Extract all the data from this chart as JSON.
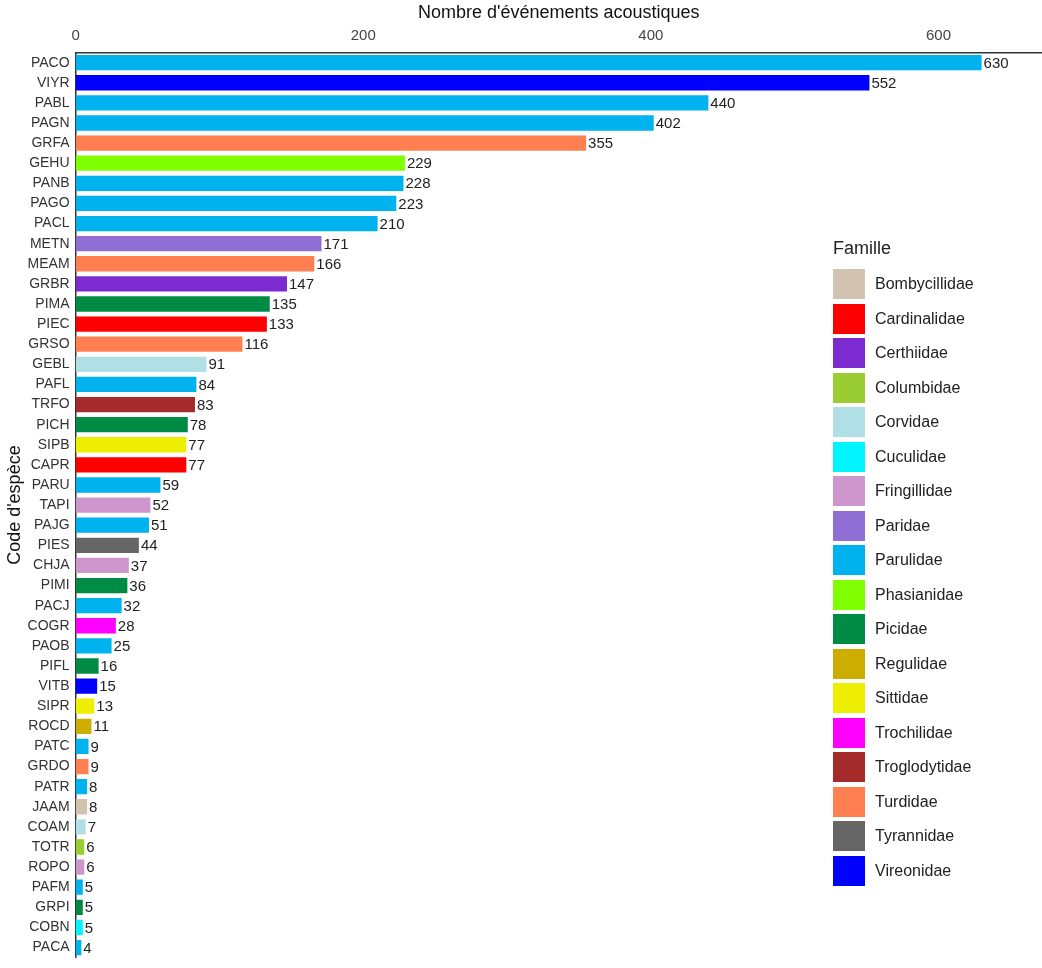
{
  "chart_data": {
    "type": "bar",
    "orientation": "horizontal",
    "data_labels": true,
    "grid": false,
    "legend": "right",
    "legend_title": "Famille",
    "xlabel": "Nombre d'événements acoustiques",
    "ylabel": "Code d'espèce",
    "xlim": [
      0,
      672
    ],
    "xticks": [
      0,
      200,
      400,
      600
    ],
    "categories": [
      "PACO",
      "VIYR",
      "PABL",
      "PAGN",
      "GRFA",
      "GEHU",
      "PANB",
      "PAGO",
      "PACL",
      "METN",
      "MEAM",
      "GRBR",
      "PIMA",
      "PIEC",
      "GRSO",
      "GEBL",
      "PAFL",
      "TRFO",
      "PICH",
      "SIPB",
      "CAPR",
      "PARU",
      "TAPI",
      "PAJG",
      "PIES",
      "CHJA",
      "PIMI",
      "PACJ",
      "COGR",
      "PAOB",
      "PIFL",
      "VITB",
      "SIPR",
      "ROCD",
      "PATC",
      "GRDO",
      "PATR",
      "JAAM",
      "COAM",
      "TOTR",
      "ROPO",
      "PAFM",
      "GRPI",
      "COBN",
      "PACA"
    ],
    "series": [
      {
        "name": "Bombycillidae",
        "color": "#d2c3b0",
        "values": [
          null,
          null,
          null,
          null,
          null,
          null,
          null,
          null,
          null,
          null,
          null,
          null,
          null,
          null,
          null,
          null,
          null,
          null,
          null,
          null,
          null,
          null,
          null,
          null,
          null,
          null,
          null,
          null,
          null,
          null,
          null,
          null,
          null,
          null,
          null,
          null,
          null,
          8,
          null,
          null,
          null,
          null,
          null,
          null,
          null
        ]
      },
      {
        "name": "Cardinalidae",
        "color": "#ff0000",
        "values": [
          null,
          null,
          null,
          null,
          null,
          null,
          null,
          null,
          null,
          null,
          null,
          null,
          null,
          133,
          null,
          null,
          null,
          null,
          null,
          null,
          77,
          null,
          null,
          null,
          null,
          null,
          null,
          null,
          null,
          null,
          null,
          null,
          null,
          null,
          null,
          null,
          null,
          null,
          null,
          null,
          null,
          null,
          null,
          null,
          null
        ]
      },
      {
        "name": "Certhiidae",
        "color": "#7b2bcf",
        "values": [
          null,
          null,
          null,
          null,
          null,
          null,
          null,
          null,
          null,
          null,
          null,
          147,
          null,
          null,
          null,
          null,
          null,
          null,
          null,
          null,
          null,
          null,
          null,
          null,
          null,
          null,
          null,
          null,
          null,
          null,
          null,
          null,
          null,
          null,
          null,
          null,
          null,
          null,
          null,
          null,
          null,
          null,
          null,
          null,
          null
        ]
      },
      {
        "name": "Columbidae",
        "color": "#9acd32",
        "values": [
          null,
          null,
          null,
          null,
          null,
          null,
          null,
          null,
          null,
          null,
          null,
          null,
          null,
          null,
          null,
          null,
          null,
          null,
          null,
          null,
          null,
          null,
          null,
          null,
          null,
          null,
          null,
          null,
          null,
          null,
          null,
          null,
          null,
          null,
          null,
          null,
          null,
          null,
          null,
          6,
          null,
          null,
          null,
          null,
          null
        ]
      },
      {
        "name": "Corvidae",
        "color": "#b0e0e6",
        "values": [
          null,
          null,
          null,
          null,
          null,
          null,
          null,
          null,
          null,
          null,
          null,
          null,
          null,
          null,
          null,
          91,
          null,
          null,
          null,
          null,
          null,
          null,
          null,
          null,
          null,
          null,
          null,
          null,
          null,
          null,
          null,
          null,
          null,
          null,
          null,
          null,
          null,
          null,
          7,
          null,
          null,
          null,
          null,
          null,
          null
        ]
      },
      {
        "name": "Cuculidae",
        "color": "#00f5ff",
        "values": [
          null,
          null,
          null,
          null,
          null,
          null,
          null,
          null,
          null,
          null,
          null,
          null,
          null,
          null,
          null,
          null,
          null,
          null,
          null,
          null,
          null,
          null,
          null,
          null,
          null,
          null,
          null,
          null,
          null,
          null,
          null,
          null,
          null,
          null,
          null,
          null,
          null,
          null,
          null,
          null,
          null,
          null,
          null,
          5,
          null
        ]
      },
      {
        "name": "Fringillidae",
        "color": "#cd96cd",
        "values": [
          null,
          null,
          null,
          null,
          null,
          null,
          null,
          null,
          null,
          null,
          null,
          null,
          null,
          null,
          null,
          null,
          null,
          null,
          null,
          null,
          null,
          null,
          52,
          null,
          null,
          37,
          null,
          null,
          null,
          null,
          null,
          null,
          null,
          null,
          null,
          null,
          null,
          null,
          null,
          null,
          6,
          null,
          null,
          null,
          null
        ]
      },
      {
        "name": "Paridae",
        "color": "#8f6fd4",
        "values": [
          null,
          null,
          null,
          null,
          null,
          null,
          null,
          null,
          null,
          171,
          null,
          null,
          null,
          null,
          null,
          null,
          null,
          null,
          null,
          null,
          null,
          null,
          null,
          null,
          null,
          null,
          null,
          null,
          null,
          null,
          null,
          null,
          null,
          null,
          null,
          null,
          null,
          null,
          null,
          null,
          null,
          null,
          null,
          null,
          null
        ]
      },
      {
        "name": "Parulidae",
        "color": "#00b2ee",
        "values": [
          630,
          null,
          440,
          402,
          null,
          null,
          228,
          223,
          210,
          null,
          null,
          null,
          null,
          null,
          null,
          null,
          84,
          null,
          null,
          null,
          null,
          59,
          null,
          51,
          null,
          null,
          null,
          32,
          null,
          25,
          null,
          null,
          null,
          null,
          9,
          null,
          8,
          null,
          null,
          null,
          null,
          5,
          null,
          null,
          4
        ]
      },
      {
        "name": "Phasianidae",
        "color": "#7fff00",
        "values": [
          null,
          null,
          null,
          null,
          null,
          229,
          null,
          null,
          null,
          null,
          null,
          null,
          null,
          null,
          null,
          null,
          null,
          null,
          null,
          null,
          null,
          null,
          null,
          null,
          null,
          null,
          null,
          null,
          null,
          null,
          null,
          null,
          null,
          null,
          null,
          null,
          null,
          null,
          null,
          null,
          null,
          null,
          null,
          null,
          null
        ]
      },
      {
        "name": "Picidae",
        "color": "#008b45",
        "values": [
          null,
          null,
          null,
          null,
          null,
          null,
          null,
          null,
          null,
          null,
          null,
          null,
          135,
          null,
          null,
          null,
          null,
          null,
          78,
          null,
          null,
          null,
          null,
          null,
          null,
          null,
          36,
          null,
          null,
          null,
          16,
          null,
          null,
          null,
          null,
          null,
          null,
          null,
          null,
          null,
          null,
          null,
          5,
          null,
          null
        ]
      },
      {
        "name": "Regulidae",
        "color": "#cdad00",
        "values": [
          null,
          null,
          null,
          null,
          null,
          null,
          null,
          null,
          null,
          null,
          null,
          null,
          null,
          null,
          null,
          null,
          null,
          null,
          null,
          null,
          null,
          null,
          null,
          null,
          null,
          null,
          null,
          null,
          null,
          null,
          null,
          null,
          null,
          11,
          null,
          null,
          null,
          null,
          null,
          null,
          null,
          null,
          null,
          null,
          null
        ]
      },
      {
        "name": "Sittidae",
        "color": "#eeee00",
        "values": [
          null,
          null,
          null,
          null,
          null,
          null,
          null,
          null,
          null,
          null,
          null,
          null,
          null,
          null,
          null,
          null,
          null,
          null,
          null,
          77,
          null,
          null,
          null,
          null,
          null,
          null,
          null,
          null,
          null,
          null,
          null,
          null,
          13,
          null,
          null,
          null,
          null,
          null,
          null,
          null,
          null,
          null,
          null,
          null,
          null
        ]
      },
      {
        "name": "Trochilidae",
        "color": "#ff00ff",
        "values": [
          null,
          null,
          null,
          null,
          null,
          null,
          null,
          null,
          null,
          null,
          null,
          null,
          null,
          null,
          null,
          null,
          null,
          null,
          null,
          null,
          null,
          null,
          null,
          null,
          null,
          null,
          null,
          null,
          28,
          null,
          null,
          null,
          null,
          null,
          null,
          null,
          null,
          null,
          null,
          null,
          null,
          null,
          null,
          null,
          null
        ]
      },
      {
        "name": "Troglodytidae",
        "color": "#a52a2a",
        "values": [
          null,
          null,
          null,
          null,
          null,
          null,
          null,
          null,
          null,
          null,
          null,
          null,
          null,
          null,
          null,
          null,
          null,
          83,
          null,
          null,
          null,
          null,
          null,
          null,
          null,
          null,
          null,
          null,
          null,
          null,
          null,
          null,
          null,
          null,
          null,
          null,
          null,
          null,
          null,
          null,
          null,
          null,
          null,
          null,
          null
        ]
      },
      {
        "name": "Turdidae",
        "color": "#ff7f50",
        "values": [
          null,
          null,
          null,
          null,
          355,
          null,
          null,
          null,
          null,
          null,
          166,
          null,
          null,
          null,
          116,
          null,
          null,
          null,
          null,
          null,
          null,
          null,
          null,
          null,
          null,
          null,
          null,
          null,
          null,
          null,
          null,
          null,
          null,
          null,
          null,
          9,
          null,
          null,
          null,
          null,
          null,
          null,
          null,
          null,
          null
        ]
      },
      {
        "name": "Tyrannidae",
        "color": "#666666",
        "values": [
          null,
          null,
          null,
          null,
          null,
          null,
          null,
          null,
          null,
          null,
          null,
          null,
          null,
          null,
          null,
          null,
          null,
          null,
          null,
          null,
          null,
          null,
          null,
          null,
          44,
          null,
          null,
          null,
          null,
          null,
          null,
          null,
          null,
          null,
          null,
          null,
          null,
          null,
          null,
          null,
          null,
          null,
          null,
          null,
          null
        ]
      },
      {
        "name": "Vireonidae",
        "color": "#0000ff",
        "values": [
          null,
          552,
          null,
          null,
          null,
          null,
          null,
          null,
          null,
          null,
          null,
          null,
          null,
          null,
          null,
          null,
          null,
          null,
          null,
          null,
          null,
          null,
          null,
          null,
          null,
          null,
          null,
          null,
          null,
          null,
          null,
          15,
          null,
          null,
          null,
          null,
          null,
          null,
          null,
          null,
          null,
          null,
          null,
          null,
          null
        ]
      }
    ]
  }
}
